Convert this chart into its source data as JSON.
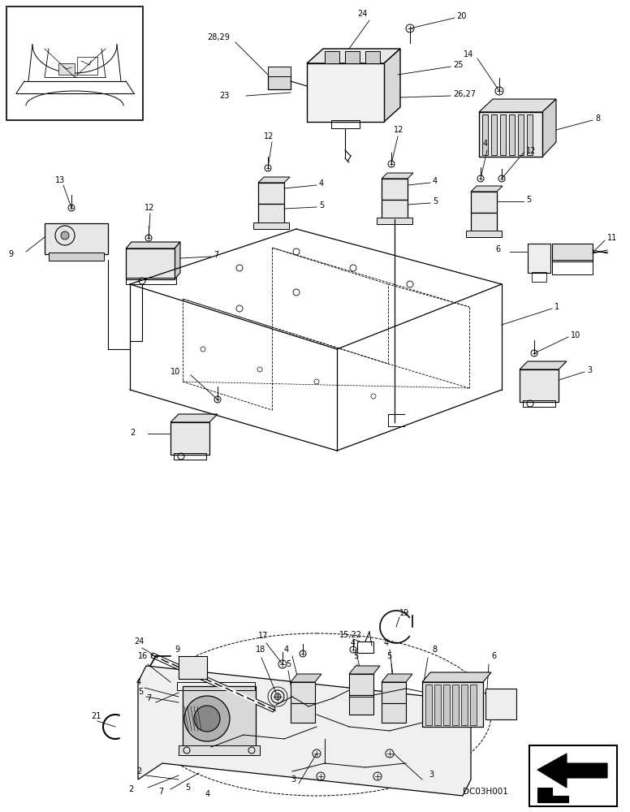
{
  "bg_color": "#ffffff",
  "fig_width": 7.76,
  "fig_height": 10.0,
  "dpi": 100,
  "lw_main": 0.8,
  "font_size": 7.0,
  "leader_lw": 0.6
}
